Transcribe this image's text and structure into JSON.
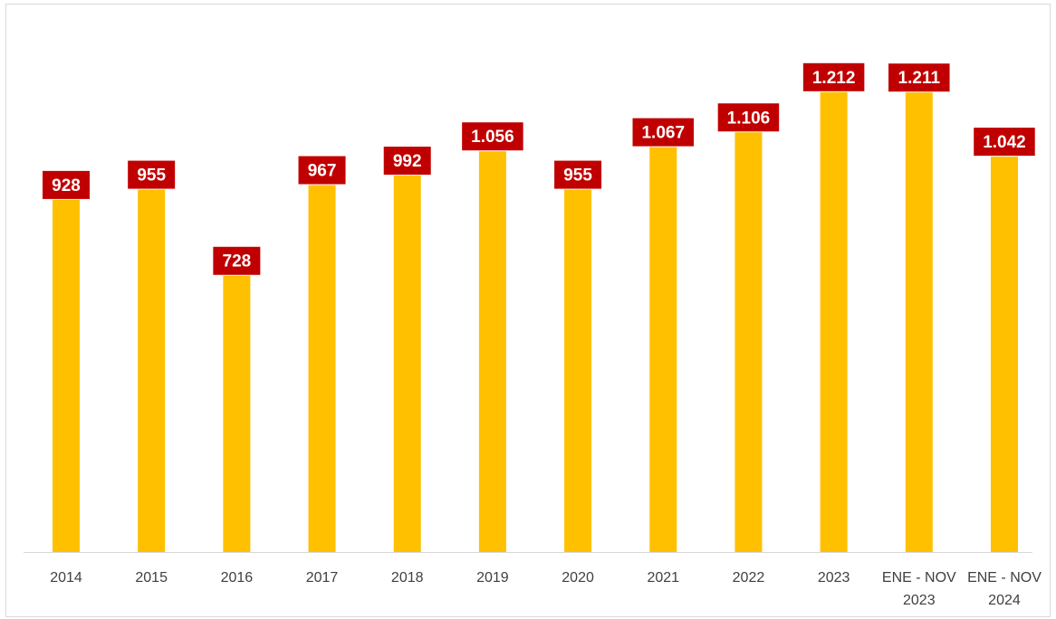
{
  "chart_data": {
    "type": "bar",
    "categories": [
      "2014",
      "2015",
      "2016",
      "2017",
      "2018",
      "2019",
      "2020",
      "2021",
      "2022",
      "2023",
      "ENE - NOV\n2023",
      "ENE - NOV\n2024"
    ],
    "values": [
      928,
      955,
      728,
      967,
      992,
      1056,
      955,
      1067,
      1106,
      1212,
      1211,
      1042
    ],
    "data_labels": [
      "928",
      "955",
      "728",
      "967",
      "992",
      "1.056",
      "955",
      "1.067",
      "1.106",
      "1.212",
      "1.211",
      "1.042"
    ],
    "title": "",
    "xlabel": "",
    "ylabel": "",
    "ylim": [
      0,
      1300
    ],
    "grid": false,
    "legend": "none",
    "colors": {
      "bar": "#FFC000",
      "label_bg": "#C00000",
      "label_text": "#FFFFFF",
      "axis": "#D9D9D9",
      "tick_text": "#404040"
    }
  }
}
